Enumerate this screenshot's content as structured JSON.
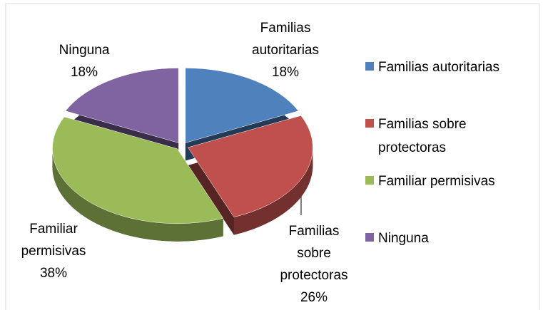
{
  "chart_data": {
    "type": "pie",
    "categories": [
      "Familias autoritarias",
      "Familias sobre protectoras",
      "Familiar permisivas",
      "Ninguna"
    ],
    "values": [
      18,
      26,
      38,
      18
    ],
    "value_labels": [
      "18%",
      "26%",
      "38%",
      "18%"
    ],
    "colors": [
      "#4f81bd",
      "#c0504d",
      "#9bbb59",
      "#8064a2"
    ],
    "legend": "right"
  }
}
